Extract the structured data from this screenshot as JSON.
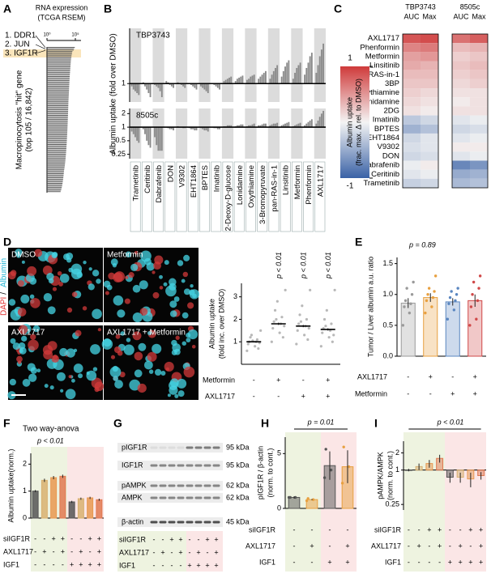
{
  "chart_data": [
    {
      "label": "A",
      "type": "ranked-bar",
      "title": "RNA expression",
      "subtitle": "(TCGA RSEM)",
      "ylabel": [
        "Macropinocytosis \"hit\" gene",
        "(top 105 / 16,842)"
      ],
      "xscale": "log",
      "xlim": [
        1,
        1000000
      ],
      "xticks": [
        {
          "value": 1,
          "label": "10⁰"
        },
        {
          "value": 100000,
          "label": "10⁵"
        }
      ],
      "annotations": [
        {
          "text": "1. DDR1",
          "color": "#000000"
        },
        {
          "text": "2. JUN",
          "color": "#000000"
        },
        {
          "text": "3. IGF1R",
          "color": "#e02020"
        }
      ],
      "highlight_color": "#f6d38e",
      "color": "#555555",
      "values": [
        80000,
        60000,
        50000,
        30000,
        26000,
        24000,
        21000,
        20000,
        18000,
        17000,
        16000,
        15500,
        15000,
        14000,
        13500,
        13000,
        12500,
        12000,
        11500,
        11000,
        10500,
        10000,
        9800,
        9500,
        9200,
        9000,
        8700,
        8500,
        8200,
        8000,
        7800,
        7600,
        7400,
        7200,
        7000,
        6800,
        6600,
        6400,
        6200,
        6000,
        5900,
        5800,
        5700,
        5600,
        5500,
        5400,
        5300,
        5200,
        5100,
        5000,
        4900,
        4800,
        4700,
        4600,
        4500,
        4400,
        4300,
        4200,
        4100,
        4000,
        3900,
        3800,
        3700,
        3600,
        3500,
        3400,
        3300,
        3200,
        3100,
        3000,
        2900,
        2800,
        2700,
        2600,
        2500,
        2400,
        2300,
        2200,
        2100,
        2000,
        1900,
        1800,
        1700,
        1600,
        1500,
        1400,
        1300,
        1200,
        1100,
        1000,
        950,
        900,
        850,
        800,
        750,
        700,
        650,
        600,
        550,
        500,
        450,
        400,
        350,
        300,
        250
      ]
    },
    {
      "label": "B",
      "type": "grouped-bar",
      "title": "TBP3743",
      "ylabel": "Albumin uptake (fold over DMSO)",
      "yscale": "log",
      "ylim": [
        0.5,
        8
      ],
      "yticks": [
        1
      ],
      "bar_base": 1,
      "color": "#8a8a8a",
      "band_color": "#dcdcdc",
      "categories": [
        "Trametinib",
        "Ceritinib",
        "Dabrafenib",
        "DON",
        "V9302",
        "EHT1864",
        "BPTES",
        "Imatinib",
        "2-Deoxy-D-glucose",
        "Lonidamine",
        "Oxythiamine",
        "3-Bromopyruvate",
        "pan-RAS-in-1",
        "Linsitinib",
        "Metformin",
        "Phenformin",
        "AXL1717"
      ],
      "category_colors": [
        "#000000",
        "#000000",
        "#000000",
        "#000000",
        "#000000",
        "#000000",
        "#000000",
        "#000000",
        "#000000",
        "#000000",
        "#000000",
        "#000000",
        "#000000",
        "#e02020",
        "#000000",
        "#000000",
        "#e02020"
      ],
      "values": [
        [
          0.9,
          0.8,
          0.75,
          0.7,
          0.65
        ],
        [
          1.05,
          0.9,
          0.8,
          0.7,
          0.6
        ],
        [
          0.95,
          0.9,
          0.85,
          0.75,
          0.6
        ],
        [
          1.1,
          1.05,
          0.95,
          0.9,
          0.85
        ],
        [
          1.05,
          1.0,
          0.95,
          0.9,
          0.85
        ],
        [
          1.0,
          0.95,
          0.9,
          0.85,
          0.8
        ],
        [
          0.9,
          0.85,
          0.8,
          0.75,
          0.7
        ],
        [
          1.0,
          0.95,
          0.9,
          0.85,
          0.8
        ],
        [
          1.1,
          1.15,
          1.2,
          1.25,
          1.3
        ],
        [
          1.1,
          1.2,
          1.25,
          1.3,
          1.35
        ],
        [
          1.15,
          1.2,
          1.3,
          1.35,
          1.4
        ],
        [
          1.2,
          1.3,
          1.4,
          1.5,
          1.6
        ],
        [
          1.2,
          1.4,
          1.6,
          1.8,
          2.0
        ],
        [
          1.3,
          1.6,
          1.9,
          2.2,
          2.4
        ],
        [
          1.2,
          1.5,
          1.8,
          2.0,
          2.2
        ],
        [
          1.4,
          1.8,
          2.2,
          2.8,
          3.2
        ],
        [
          1.5,
          2.0,
          2.8,
          3.6,
          4.5
        ]
      ]
    },
    {
      "type": "grouped-bar",
      "title": "8505c",
      "yscale": "log",
      "ylim": [
        0.2,
        2.6
      ],
      "yticks": [
        2,
        1,
        0.5,
        0.25
      ],
      "bar_base": 1,
      "color": "#8a8a8a",
      "band_color": "#dcdcdc",
      "values": [
        [
          0.8,
          0.7,
          0.6,
          0.5,
          0.45
        ],
        [
          0.9,
          0.7,
          0.5,
          0.4,
          0.35
        ],
        [
          0.6,
          0.4,
          0.3,
          0.3,
          0.3
        ],
        [
          1.0,
          0.95,
          0.9,
          0.9,
          0.85
        ],
        [
          1.05,
          1.0,
          1.0,
          0.95,
          0.95
        ],
        [
          0.95,
          0.9,
          0.9,
          0.85,
          0.85
        ],
        [
          0.95,
          0.9,
          0.85,
          0.85,
          0.8
        ],
        [
          1.0,
          0.95,
          0.95,
          0.9,
          0.9
        ],
        [
          1.05,
          1.05,
          1.1,
          1.1,
          1.1
        ],
        [
          1.05,
          1.1,
          1.1,
          1.15,
          1.15
        ],
        [
          1.05,
          1.1,
          1.1,
          1.15,
          1.2
        ],
        [
          1.1,
          1.1,
          1.15,
          1.2,
          1.2
        ],
        [
          1.1,
          1.15,
          1.2,
          1.2,
          1.25
        ],
        [
          1.1,
          1.15,
          1.2,
          1.25,
          1.3
        ],
        [
          1.05,
          1.1,
          1.15,
          1.2,
          1.25
        ],
        [
          1.1,
          1.2,
          1.3,
          1.4,
          1.5
        ],
        [
          1.2,
          1.4,
          1.7,
          2.0,
          2.3
        ]
      ]
    },
    {
      "label": "C",
      "type": "heatmap",
      "rows": [
        "AXL1717",
        "Phenformin",
        "Metformin",
        "Linsitinib",
        "pan-RAS-in-1",
        "3BP",
        "Oxythiamine",
        "Lonidamine",
        "2DG",
        "Imatinib",
        "BPTES",
        "EHT1864",
        "V9302",
        "DON",
        "Dabrafenib",
        "Ceritinib",
        "Trametinib"
      ],
      "row_colors": [
        "#e02020",
        "#000000",
        "#000000",
        "#e02020",
        "#000000",
        "#000000",
        "#000000",
        "#000000",
        "#000000",
        "#000000",
        "#000000",
        "#000000",
        "#000000",
        "#000000",
        "#000000",
        "#000000",
        "#000000"
      ],
      "zlim": [
        -1,
        1
      ],
      "colors": [
        "#3a62a6",
        "#f4f4f4",
        "#cf3a3a"
      ],
      "colorbar": {
        "label": [
          "Albumin uptake",
          "(frac. max. Δ rel. to DMSO)"
        ],
        "ticks": [
          1,
          -1
        ]
      },
      "groups": [
        {
          "name": "TBP3743",
          "series": [
            {
              "name": "AUC",
              "values": [
                0.85,
                0.6,
                0.45,
                0.4,
                0.3,
                0.25,
                0.2,
                0.15,
                0.1,
                -0.3,
                -0.45,
                -0.2,
                -0.15,
                -0.2,
                -0.05,
                -0.1,
                -0.25
              ]
            },
            {
              "name": "Max",
              "values": [
                0.9,
                0.65,
                0.5,
                0.35,
                0.3,
                0.25,
                0.15,
                0.1,
                0.05,
                -0.2,
                -0.35,
                -0.1,
                -0.1,
                -0.15,
                0.05,
                -0.05,
                -0.2
              ]
            }
          ]
        },
        {
          "name": "8505c",
          "series": [
            {
              "name": "AUC",
              "values": [
                0.7,
                0.3,
                0.2,
                0.25,
                0.2,
                0.15,
                0.1,
                0.05,
                0.1,
                -0.1,
                -0.2,
                -0.1,
                0.05,
                -0.1,
                -0.75,
                -0.5,
                -0.4
              ]
            },
            {
              "name": "Max",
              "values": [
                0.8,
                0.35,
                0.25,
                0.3,
                0.25,
                0.2,
                0.1,
                0.1,
                0.1,
                -0.05,
                -0.15,
                -0.05,
                0.05,
                -0.05,
                -0.65,
                -0.45,
                -0.35
              ]
            }
          ]
        }
      ]
    },
    {
      "label": "D",
      "type": "dot-plot",
      "images": [
        "DMSO",
        "Metformin",
        "AXL1717",
        "AXL1717 + Metformin"
      ],
      "stain": [
        {
          "text": "DAPI",
          "color": "#e03030"
        },
        {
          "text": "/",
          "color": "#000000"
        },
        {
          "text": "Albumin",
          "color": "#22b4d4"
        }
      ],
      "ylabel": [
        "Albumin uptake",
        "(fold inc. over DMSO)"
      ],
      "ylim": [
        0,
        3.6
      ],
      "yticks": [
        1,
        2,
        3
      ],
      "values": [
        1.0,
        1.8,
        1.7,
        1.55
      ],
      "errors": [
        0.03,
        0.05,
        0.05,
        0.05
      ],
      "p_labels": [
        null,
        "p < 0.01",
        "p < 0.01",
        "p < 0.01"
      ],
      "point_color": "#b8b8b8",
      "mean_color": "#000000",
      "points": [
        [
          0.6,
          0.8,
          0.9,
          1.0,
          1.0,
          1.1,
          1.2,
          0.7,
          1.3,
          0.95,
          1.05,
          1.5
        ],
        [
          1.0,
          1.4,
          1.6,
          1.8,
          1.9,
          2.1,
          2.4,
          1.2,
          2.0,
          1.7,
          2.8,
          3.3
        ],
        [
          0.9,
          1.3,
          1.5,
          1.7,
          1.8,
          2.0,
          2.2,
          1.1,
          1.9,
          1.6,
          2.6,
          3.3
        ],
        [
          0.8,
          1.2,
          1.4,
          1.5,
          1.6,
          1.8,
          2.0,
          1.0,
          1.7,
          1.3,
          2.4,
          3.3
        ]
      ],
      "conditions": [
        {
          "name": "Metformin",
          "signs": [
            "-",
            "+",
            "-",
            "+"
          ]
        },
        {
          "name": "AXL1717",
          "signs": [
            "-",
            "-",
            "+",
            "+"
          ]
        }
      ]
    },
    {
      "label": "E",
      "type": "bar",
      "ylabel": "Tumor / Liver albumin a.u. ratio",
      "annotation": "p = 0.89",
      "ylim": [
        0,
        1.6
      ],
      "yticks": [
        {
          "value": 0,
          "label": "0.0"
        },
        0.5,
        {
          "value": 1,
          "label": "1.0"
        },
        1.5
      ],
      "values": [
        0.86,
        0.95,
        0.88,
        0.9
      ],
      "errors": [
        0.08,
        0.07,
        0.06,
        0.1
      ],
      "colors": [
        "#9a9a9a",
        "#e8a040",
        "#5a86c0",
        "#d04848"
      ],
      "fill_opacity": 0.3,
      "points": [
        [
          0.5,
          0.7,
          0.8,
          0.85,
          0.9,
          1.0,
          1.1,
          1.2
        ],
        [
          0.7,
          0.8,
          0.9,
          0.95,
          1.0,
          1.05,
          1.1,
          1.3
        ],
        [
          0.6,
          0.75,
          0.85,
          0.9,
          0.95,
          1.0,
          1.05,
          1.1
        ],
        [
          0.5,
          0.6,
          0.8,
          0.9,
          1.0,
          1.1,
          1.2,
          1.3
        ]
      ],
      "conditions": [
        {
          "name": "AXL1717",
          "signs": [
            "-",
            "+",
            "-",
            "+"
          ]
        },
        {
          "name": "Metformin",
          "signs": [
            "-",
            "-",
            "+",
            "+"
          ]
        }
      ]
    },
    {
      "label": "F",
      "type": "bar",
      "title": "Two way-anova",
      "annotation": "p < 0.01",
      "ylabel": "Albumin uptake(norm.)",
      "ylim": [
        0,
        2.4
      ],
      "yticks": [
        0,
        1,
        2
      ],
      "values": [
        1.0,
        1.4,
        1.5,
        1.55,
        0.6,
        0.72,
        0.75,
        0.68
      ],
      "errors": [
        0.04,
        0.06,
        0.06,
        0.06,
        0.04,
        0.04,
        0.04,
        0.04
      ],
      "colors": [
        "#555555",
        "#d8b070",
        "#e89850",
        "#e07850",
        "#555555",
        "#d8b070",
        "#e89850",
        "#e07850"
      ],
      "fill_opacity": 0.85,
      "backgrounds": [
        "#eef3e0",
        "#fbe6e6"
      ],
      "conditions": [
        {
          "name": "siIGF1R",
          "signs": [
            "-",
            "-",
            "+",
            "+",
            "-",
            "-",
            "+",
            "+"
          ]
        },
        {
          "name": "AXL1717",
          "signs": [
            "-",
            "+",
            "-",
            "+",
            "-",
            "+",
            "-",
            "+"
          ]
        },
        {
          "name": "IGF1",
          "signs": [
            "-",
            "-",
            "-",
            "-",
            "+",
            "+",
            "+",
            "+"
          ]
        }
      ]
    },
    {
      "label": "G",
      "type": "blot",
      "rows": [
        {
          "name": "pIGF1R",
          "size": "95 kDa"
        },
        {
          "name": "IGF1R",
          "size": "95 kDa"
        },
        {
          "name": "pAMPK",
          "size": "62 kDa"
        },
        {
          "name": "AMPK",
          "size": "62 kDa"
        },
        {
          "name": "β-actin",
          "size": "45 kDa"
        }
      ],
      "backgrounds": [
        "#eef3e0",
        "#fbe6e6"
      ],
      "conditions": [
        {
          "name": "siIGF1R",
          "signs": [
            "-",
            "-",
            "+",
            "+",
            "-",
            "-",
            "+",
            "+"
          ]
        },
        {
          "name": "AXL1717",
          "signs": [
            "-",
            "+",
            "-",
            "+",
            "-",
            "+",
            "-",
            "+"
          ]
        },
        {
          "name": "IGF1",
          "signs": [
            "-",
            "-",
            "-",
            "-",
            "+",
            "+",
            "+",
            "+"
          ]
        }
      ]
    },
    {
      "label": "H",
      "type": "bar",
      "annotation": "p = 0.01",
      "ylabel": [
        "pIGF1R / β-actin",
        "(norm. to cont.)"
      ],
      "ylim": [
        0,
        6.5
      ],
      "yticks": [
        0,
        5
      ],
      "values": [
        1.0,
        0.8,
        3.9,
        3.8
      ],
      "errors": [
        0.1,
        0.05,
        1.3,
        1.5
      ],
      "colors": [
        "#555555",
        "#e8a040",
        "#555555",
        "#e8a040"
      ],
      "fill_opacity": 0.5,
      "backgrounds": [
        "#eef3e0",
        "#fbe6e6"
      ],
      "points": [
        [
          1.0,
          1.0,
          1.0
        ],
        [
          0.7,
          0.8,
          0.9
        ],
        [
          2.8,
          3.5,
          5.4
        ],
        [
          2.3,
          3.8,
          5.6
        ]
      ],
      "conditions": [
        {
          "name": "siIGF1R",
          "signs": [
            "-",
            "-",
            "-",
            "-"
          ]
        },
        {
          "name": "AXL1717",
          "signs": [
            "-",
            "+",
            "-",
            "+"
          ]
        },
        {
          "name": "IGF1",
          "signs": [
            "-",
            "-",
            "+",
            "+"
          ]
        }
      ]
    },
    {
      "label": "I",
      "type": "bar",
      "annotation": "p < 0.01",
      "ylabel": [
        "pAMPK/AMPK",
        "(norm. to cont.)"
      ],
      "yscale": "log",
      "ylim": [
        0.2,
        3.2
      ],
      "yticks": [
        2,
        1,
        0.25
      ],
      "bar_base": 1,
      "values": [
        1.0,
        1.15,
        1.3,
        1.6,
        0.75,
        0.75,
        0.7,
        0.8
      ],
      "errors": [
        0.05,
        0.15,
        0.2,
        0.25,
        0.15,
        0.15,
        0.2,
        0.12
      ],
      "colors": [
        "#555555",
        "#d8b070",
        "#e89850",
        "#e07850",
        "#555555",
        "#d8b070",
        "#e89850",
        "#e07850"
      ],
      "fill_opacity": 0.5,
      "backgrounds": [
        "#eef3e0",
        "#fbe6e6"
      ],
      "conditions": [
        {
          "name": "siIGF1R",
          "signs": [
            "-",
            "-",
            "+",
            "+",
            "-",
            "-",
            "+",
            "+"
          ]
        },
        {
          "name": "AXL1717",
          "signs": [
            "-",
            "+",
            "-",
            "+",
            "-",
            "+",
            "-",
            "+"
          ]
        },
        {
          "name": "IGF1",
          "signs": [
            "-",
            "-",
            "-",
            "-",
            "+",
            "+",
            "+",
            "+"
          ]
        }
      ]
    }
  ]
}
